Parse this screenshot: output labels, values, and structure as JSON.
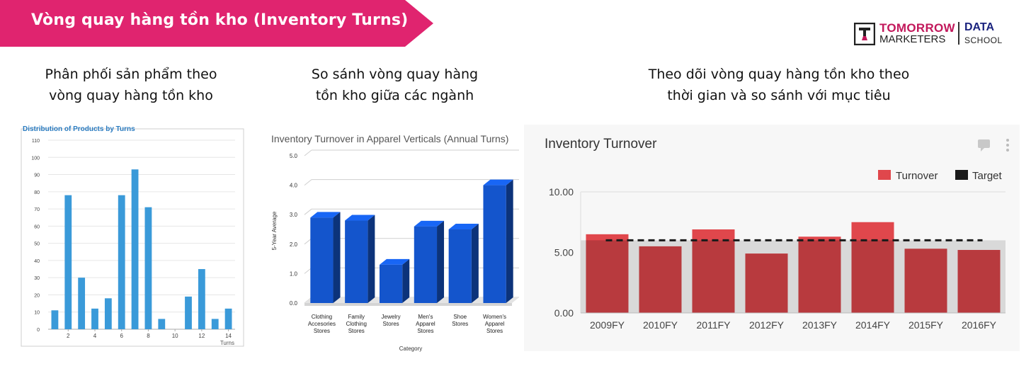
{
  "banner": {
    "title": "Vòng quay hàng tồn kho (Inventory Turns)",
    "color": "#e0246f"
  },
  "logo": {
    "line1": "TOMORROW",
    "line2": "MARKETERS",
    "line3": "DATA",
    "line4": "SCHOOL"
  },
  "captions": {
    "left": [
      "Phân phối sản phẩm theo",
      "vòng quay hàng tồn kho"
    ],
    "middle": [
      "So sánh vòng quay hàng",
      "tồn kho giữa các ngành"
    ],
    "right": [
      "Theo dõi vòng quay hàng tồn kho theo",
      "thời gian và so sánh với mục tiêu"
    ]
  },
  "chart_data": [
    {
      "type": "bar",
      "title": "Distribution of Products by Turns",
      "x": [
        1,
        2,
        3,
        4,
        5,
        6,
        7,
        8,
        9,
        10,
        11,
        12,
        13,
        14
      ],
      "values": [
        11,
        78,
        30,
        12,
        18,
        78,
        93,
        71,
        6,
        0,
        19,
        35,
        6,
        12
      ],
      "x_tick_labels": [
        "2",
        "4",
        "6",
        "8",
        "10",
        "12",
        "14"
      ],
      "y_tick_labels": [
        "0",
        "10",
        "20",
        "30",
        "40",
        "50",
        "60",
        "70",
        "80",
        "90",
        "100",
        "110"
      ],
      "ylim": [
        0,
        110
      ],
      "xlabel": "Turns",
      "grid": true,
      "color": "#3a9ad9"
    },
    {
      "type": "bar",
      "title": "Inventory Turnover in Apparel Verticals (Annual Turns)",
      "categories": [
        [
          "Clothing",
          "Accesories",
          "Stores"
        ],
        [
          "Family",
          "Clothing",
          "Stores"
        ],
        [
          "Jewelry",
          "Stores"
        ],
        [
          "Men's",
          "Apparel",
          "Stores"
        ],
        [
          "Shoe",
          "Stores"
        ],
        [
          "Women's",
          "Apparel",
          "Stores"
        ]
      ],
      "values": [
        2.9,
        2.8,
        1.3,
        2.6,
        2.5,
        4.0
      ],
      "y_tick_labels": [
        "0.0",
        "1.0",
        "2.0",
        "3.0",
        "4.0",
        "5.0"
      ],
      "ylim": [
        0,
        5
      ],
      "xlabel": "Category",
      "ylabel": "5-Year Average",
      "grid": true,
      "color": "#1455cc"
    },
    {
      "type": "bar",
      "title": "Inventory Turnover",
      "categories": [
        "2009FY",
        "2010FY",
        "2011FY",
        "2012FY",
        "2013FY",
        "2014FY",
        "2015FY",
        "2016FY"
      ],
      "series": [
        {
          "name": "Turnover",
          "values": [
            6.5,
            5.5,
            6.9,
            4.9,
            6.3,
            7.5,
            5.3,
            5.2
          ],
          "color": "#e0474c"
        },
        {
          "name": "Target",
          "values": [
            6.0,
            6.0,
            6.0,
            6.0,
            6.0,
            6.0,
            6.0,
            6.0
          ],
          "color": "#1a1a1a"
        }
      ],
      "y_tick_labels": [
        "0.00",
        "5.00",
        "10.00"
      ],
      "ylim": [
        0,
        10
      ],
      "legend": "top-right",
      "grid": true
    }
  ]
}
